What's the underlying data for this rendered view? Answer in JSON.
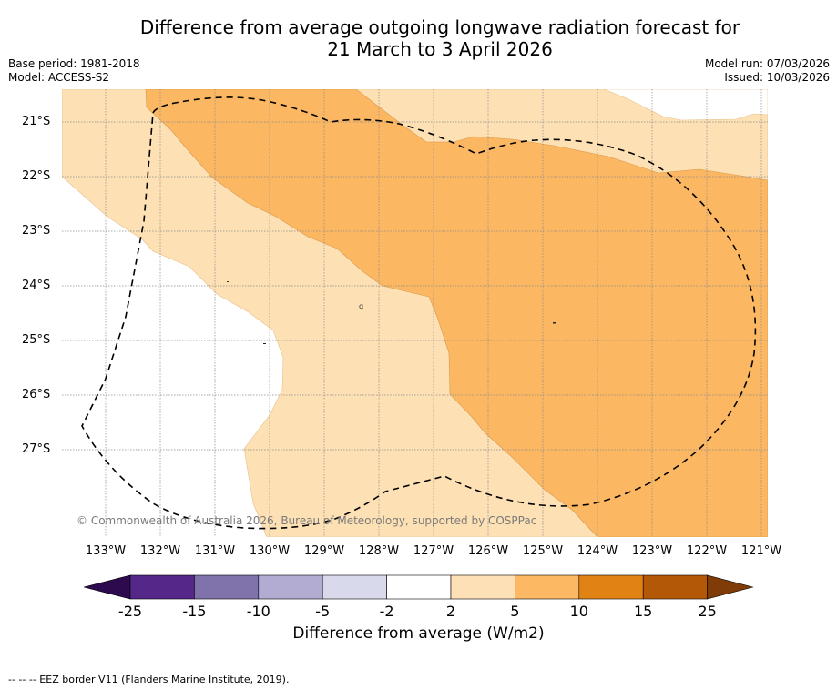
{
  "header": {
    "title_line1": "Difference from average outgoing longwave radiation forecast for",
    "title_line2": "21 March to 3 April 2026",
    "base_period": "Base period: 1981-2018",
    "model": "Model: ACCESS-S2",
    "model_run": "Model run: 07/03/2026",
    "issued": "Issued: 10/03/2026"
  },
  "map": {
    "lat_labels": [
      "21°S",
      "22°S",
      "23°S",
      "24°S",
      "25°S",
      "26°S",
      "27°S"
    ],
    "lon_labels": [
      "133°W",
      "132°W",
      "131°W",
      "130°W",
      "129°W",
      "128°W",
      "127°W",
      "126°W",
      "125°W",
      "124°W",
      "123°W",
      "122°W",
      "121°W"
    ],
    "copyright": "© Commonwealth of Australia 2026, Bureau of Meteorology, supported by COSPPac",
    "colors": {
      "light_orange": "#fde0b4",
      "mid_orange": "#fbb762",
      "background": "#ffffff",
      "grid": "#888888",
      "eez_line": "#000000"
    }
  },
  "colorbar": {
    "title": "Difference from average (W/m2)",
    "ticks": [
      "-25",
      "-15",
      "-10",
      "-5",
      "-2",
      "2",
      "5",
      "10",
      "15",
      "25"
    ],
    "colors": [
      "#2d0a4e",
      "#542788",
      "#8073ac",
      "#b2abd2",
      "#d8daeb",
      "#ffffff",
      "#fee0b6",
      "#fdb863",
      "#e08214",
      "#b35806",
      "#7f3b08"
    ]
  },
  "footer": {
    "legend": "--  --  -- EEZ border V11 (Flanders Marine Institute, 2019)."
  }
}
